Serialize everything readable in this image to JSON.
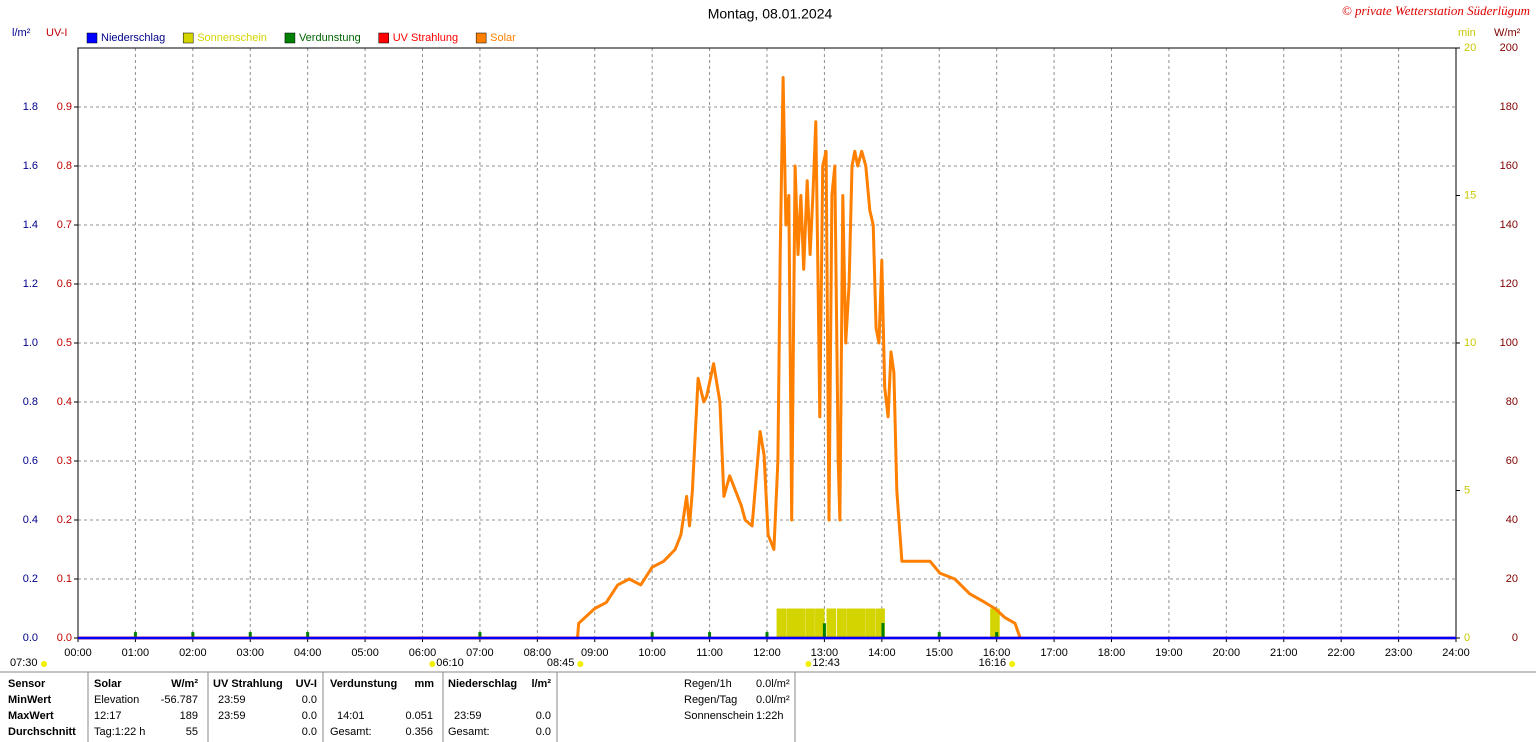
{
  "chart_data": {
    "type": "line",
    "title": "Montag, 08.01.2024",
    "copyright": "© private Wetterstation Süderlügum",
    "grid": true,
    "y_label": "l/m²",
    "uv_label": "UV-I",
    "y2_label": "min",
    "y3_label": "W/m²",
    "xlim": [
      0,
      24
    ],
    "xticks": [
      {
        "value": 0,
        "label": "00:00"
      },
      {
        "value": 1,
        "label": "01:00"
      },
      {
        "value": 2,
        "label": "02:00"
      },
      {
        "value": 3,
        "label": "03:00"
      },
      {
        "value": 4,
        "label": "04:00"
      },
      {
        "value": 5,
        "label": "05:00"
      },
      {
        "value": 6,
        "label": "06:00"
      },
      {
        "value": 7,
        "label": "07:00"
      },
      {
        "value": 8,
        "label": "08:00"
      },
      {
        "value": 9,
        "label": "09:00"
      },
      {
        "value": 10,
        "label": "10:00"
      },
      {
        "value": 11,
        "label": "11:00"
      },
      {
        "value": 12,
        "label": "12:00"
      },
      {
        "value": 13,
        "label": "13:00"
      },
      {
        "value": 14,
        "label": "14:00"
      },
      {
        "value": 15,
        "label": "15:00"
      },
      {
        "value": 16,
        "label": "16:00"
      },
      {
        "value": 17,
        "label": "17:00"
      },
      {
        "value": 18,
        "label": "18:00"
      },
      {
        "value": 19,
        "label": "19:00"
      },
      {
        "value": 20,
        "label": "20:00"
      },
      {
        "value": 21,
        "label": "21:00"
      },
      {
        "value": 22,
        "label": "22:00"
      },
      {
        "value": 23,
        "label": "23:00"
      },
      {
        "value": 24,
        "label": "24:00"
      }
    ],
    "ylim": [
      0,
      2.0
    ],
    "yticks": [
      {
        "value": 0,
        "label": "0.0"
      },
      0.2,
      0.4,
      0.6,
      0.8,
      {
        "value": 1,
        "label": "1.0"
      },
      1.2,
      1.4,
      1.6,
      1.8
    ],
    "uvlim": [
      0,
      1.0
    ],
    "uvticks": [
      {
        "value": 0,
        "label": "0.0"
      },
      0.1,
      0.2,
      0.3,
      0.4,
      0.5,
      0.6,
      0.7,
      0.8,
      0.9
    ],
    "y2lim": [
      0,
      20
    ],
    "y2ticks": [
      0,
      5,
      10,
      15,
      20
    ],
    "y3lim": [
      0,
      200
    ],
    "y3ticks": [
      0,
      20,
      40,
      60,
      80,
      100,
      120,
      140,
      160,
      180,
      200
    ],
    "series": [
      {
        "name": "Niederschlag",
        "color": "#0000ff",
        "type": "line",
        "axis": "y",
        "x": [
          0,
          24
        ],
        "values": [
          0,
          0
        ]
      },
      {
        "name": "Sonnenschein",
        "color": "#d4d400",
        "type": "bar",
        "axis": "y2",
        "x": [
          12.25,
          12.42,
          12.58,
          12.75,
          12.92,
          13.12,
          13.3,
          13.47,
          13.63,
          13.8,
          13.97,
          15.97
        ],
        "values": [
          1,
          1,
          1,
          1,
          1,
          1,
          1,
          1,
          1,
          1,
          1,
          1
        ]
      },
      {
        "name": "Verdunstung",
        "color": "#008000",
        "type": "bar",
        "axis": "y",
        "x": [
          1,
          2,
          3,
          4,
          7,
          10,
          11,
          12,
          13,
          14.02,
          15,
          16
        ],
        "values": [
          0.02,
          0.02,
          0.02,
          0.02,
          0.02,
          0.02,
          0.02,
          0.02,
          0.05,
          0.051,
          0.02,
          0.02
        ]
      },
      {
        "name": "UV Strahlung",
        "color": "#ff0000",
        "type": "line",
        "axis": "uv",
        "x": [
          0,
          24
        ],
        "values": [
          0,
          0
        ]
      },
      {
        "name": "Solar",
        "color": "#ff8000",
        "type": "line",
        "axis": "y3",
        "x": [
          0,
          8.7,
          8.72,
          9.0,
          9.2,
          9.4,
          9.6,
          9.8,
          10.0,
          10.2,
          10.4,
          10.5,
          10.6,
          10.65,
          10.7,
          10.8,
          10.9,
          10.95,
          11.07,
          11.18,
          11.25,
          11.35,
          11.45,
          11.55,
          11.62,
          11.74,
          11.88,
          11.95,
          12.02,
          12.12,
          12.19,
          12.23,
          12.28,
          12.33,
          12.38,
          12.43,
          12.49,
          12.54,
          12.59,
          12.64,
          12.7,
          12.75,
          12.8,
          12.85,
          12.89,
          12.92,
          12.97,
          13.03,
          13.08,
          13.13,
          13.18,
          13.24,
          13.27,
          13.32,
          13.37,
          13.43,
          13.48,
          13.53,
          13.58,
          13.65,
          13.72,
          13.79,
          13.85,
          13.9,
          13.95,
          14.0,
          14.05,
          14.11,
          14.16,
          14.21,
          14.26,
          14.35,
          14.84,
          15.01,
          15.27,
          15.53,
          15.8,
          15.97,
          16.14,
          16.32,
          16.41
        ],
        "values": [
          0,
          0,
          5,
          10,
          12,
          18,
          20,
          18,
          24,
          26,
          30,
          35,
          48,
          38,
          50,
          88,
          80,
          82,
          93,
          80,
          48,
          55,
          50,
          45,
          40,
          38,
          70,
          62,
          35,
          30,
          60,
          130,
          190,
          140,
          150,
          40,
          160,
          130,
          150,
          125,
          155,
          130,
          150,
          175,
          120,
          75,
          160,
          165,
          40,
          150,
          160,
          60,
          40,
          150,
          100,
          120,
          160,
          165,
          160,
          165,
          160,
          145,
          140,
          105,
          100,
          128,
          85,
          75,
          97,
          90,
          50,
          26,
          26,
          22,
          20,
          15,
          12,
          10,
          7,
          5,
          0
        ]
      }
    ],
    "markers": [
      {
        "x": 6.17,
        "label": "06:10"
      },
      {
        "x": 8.75,
        "label": "08:45"
      },
      {
        "x": 12.72,
        "label": "12:43"
      },
      {
        "x": 16.27,
        "label": "16:16"
      }
    ],
    "left_marker": "07:30"
  },
  "table": {
    "header": [
      "Sensor",
      "Solar",
      "W/m²",
      "UV Strahlung",
      "UV-I",
      "Verdunstung",
      "mm",
      "Niederschlag",
      "l/m²"
    ],
    "rows": [
      {
        "label": "MinWert",
        "cells": [
          [
            "Elevation",
            "-56.787"
          ],
          [
            "23:59",
            "0.0"
          ],
          null,
          null
        ]
      },
      {
        "label": "MaxWert",
        "cells": [
          [
            "12:17",
            "189"
          ],
          [
            "23:59",
            "0.0"
          ],
          [
            "14:01",
            "0.051"
          ],
          [
            "23:59",
            "0.0"
          ]
        ]
      },
      {
        "label": "Durchschnitt",
        "cells": [
          [
            "Tag:1:22 h",
            "55"
          ],
          [
            null,
            "0.0"
          ],
          [
            "Gesamt:",
            "0.356"
          ],
          [
            "Gesamt:",
            "0.0"
          ]
        ]
      }
    ],
    "summary": [
      [
        "Regen/1h",
        "0.0l/m²"
      ],
      [
        "Regen/Tag",
        "0.0l/m²"
      ],
      [
        "Sonnenschein",
        "1:22h"
      ]
    ]
  }
}
